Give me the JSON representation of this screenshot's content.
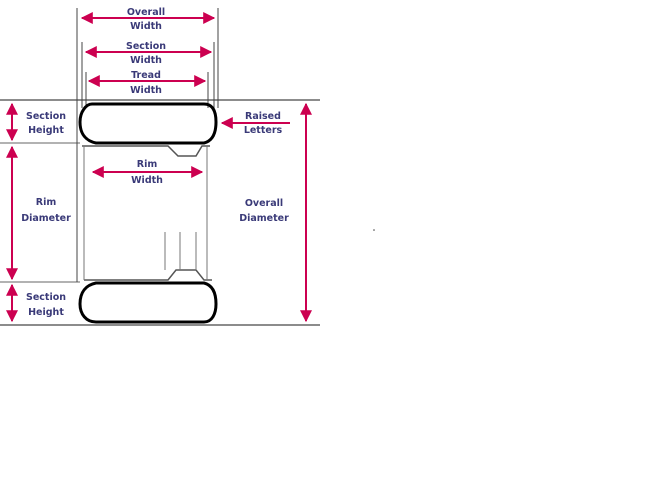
{
  "labels": {
    "overall_width_1": "Overall",
    "overall_width_2": "Width",
    "section_width_1": "Section",
    "section_width_2": "Width",
    "tread_width_1": "Tread",
    "tread_width_2": "Width",
    "section_height_top_1": "Section",
    "section_height_top_2": "Height",
    "raised_letters_1": "Raised",
    "raised_letters_2": "Letters",
    "rim_width_1": "Rim",
    "rim_width_2": "Width",
    "rim_diameter_1": "Rim",
    "rim_diameter_2": "Diameter",
    "overall_diameter_1": "Overall",
    "overall_diameter_2": "Diameter",
    "section_height_bottom_1": "Section",
    "section_height_bottom_2": "Height"
  },
  "colors": {
    "arrow": "#cc0050",
    "label": "#3a3a78",
    "tire": "#000000",
    "rim": "#555555",
    "ground": "#666666"
  }
}
